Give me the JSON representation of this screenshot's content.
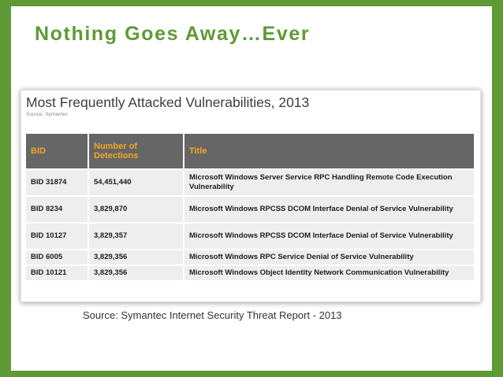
{
  "slide": {
    "title": "Nothing Goes Away…Ever",
    "caption": "Source: Symantec Internet Security Threat Report - 2013"
  },
  "figure": {
    "title": "Most Frequently Attacked Vulnerabilities, 2013",
    "source": "Source: Symantec"
  },
  "table": {
    "headers": {
      "bid": "BID",
      "detections_line1": "Number of",
      "detections_line2": "Detections",
      "title": "Title"
    },
    "rows": [
      {
        "bid": "BID 31874",
        "detections": "54,451,440",
        "title": "Microsoft Windows Server Service RPC Handling Remote Code Execution Vulnerability"
      },
      {
        "bid": "BID 8234",
        "detections": "3,829,870",
        "title": "Microsoft Windows RPCSS DCOM Interface Denial of Service Vulnerability"
      },
      {
        "bid": "BID 10127",
        "detections": "3,829,357",
        "title": "Microsoft Windows RPCSS DCOM Interface Denial of Service Vulnerability"
      },
      {
        "bid": "BID 6005",
        "detections": "3,829,356",
        "title": "Microsoft Windows RPC Service Denial of Service Vulnerability"
      },
      {
        "bid": "BID 10121",
        "detections": "3,829,356",
        "title": "Microsoft Windows Object Identity Network Communication Vulnerability"
      }
    ]
  },
  "colors": {
    "frame": "#5f9a35",
    "title_green": "#5f9a35",
    "header_bg": "#666666",
    "header_text": "#f5a623",
    "cell_bg": "#eeeeee"
  }
}
